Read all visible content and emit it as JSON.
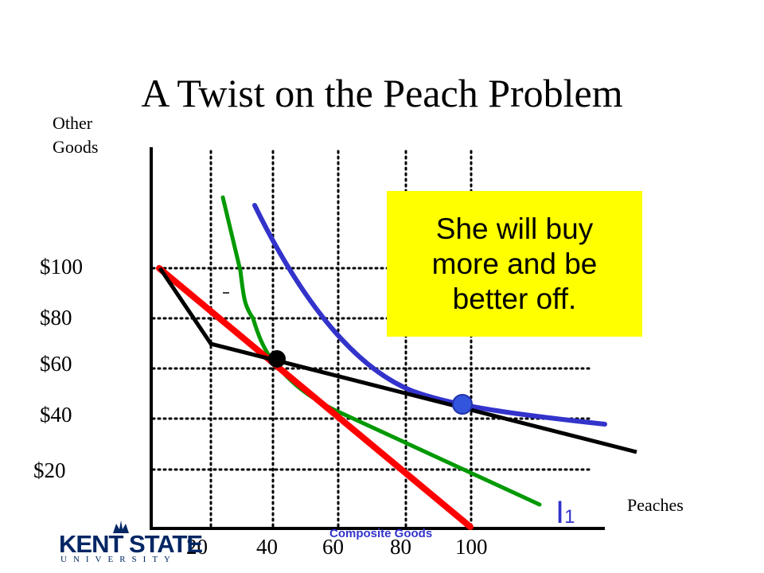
{
  "slide": {
    "title": "A Twist on the Peach Problem",
    "y_axis_label_line1": "Other",
    "y_axis_label_line2": "Goods",
    "x_axis_label": "Peaches",
    "callout_text": "She will buy more and be better off.",
    "curve_label": "I",
    "curve_label_subscript": "1",
    "footer_label": "Composite Goods",
    "logo_text": "KENT STATE",
    "logo_subtext": "UNIVERSITY"
  },
  "y_ticks": [
    "$100",
    "$80",
    "$60",
    "$40",
    "$20"
  ],
  "x_ticks": [
    "20",
    "40",
    "60",
    "80",
    "100"
  ],
  "colors": {
    "budget_original": "#ff0000",
    "budget_kinked": "#000000",
    "indifference_1": "#009900",
    "indifference_2": "#3333cc",
    "callout_bg": "#ffff00",
    "label_blue": "#3333cc",
    "logo_navy": "#002664"
  }
}
